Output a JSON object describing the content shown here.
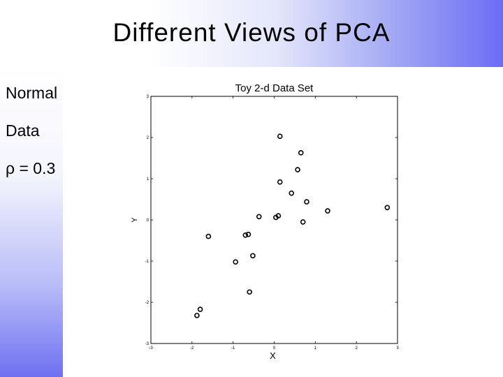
{
  "slide": {
    "title": "Different Views of PCA",
    "side_labels": [
      "Normal",
      "Data",
      "ρ = 0.3"
    ]
  },
  "chart_data": {
    "type": "scatter",
    "title": "Toy 2-d Data Set",
    "xlabel": "X",
    "ylabel": "Y",
    "xlim": [
      -3,
      3
    ],
    "ylim": [
      -3,
      3
    ],
    "xticks": [
      -3,
      -2,
      -1,
      0,
      1,
      2,
      3
    ],
    "yticks": [
      -3,
      -2,
      -1,
      0,
      1,
      2,
      3
    ],
    "grid": false,
    "marker": "open-circle",
    "point_color": "#000000",
    "points": [
      {
        "x": 0.14,
        "y": 2.03
      },
      {
        "x": 0.65,
        "y": 1.63
      },
      {
        "x": 0.57,
        "y": 1.22
      },
      {
        "x": 0.14,
        "y": 0.92
      },
      {
        "x": 0.42,
        "y": 0.65
      },
      {
        "x": 0.79,
        "y": 0.44
      },
      {
        "x": 1.3,
        "y": 0.22
      },
      {
        "x": 2.75,
        "y": 0.3
      },
      {
        "x": 0.1,
        "y": 0.1
      },
      {
        "x": 0.04,
        "y": 0.06
      },
      {
        "x": -0.37,
        "y": 0.08
      },
      {
        "x": 0.7,
        "y": -0.05
      },
      {
        "x": -0.63,
        "y": -0.35
      },
      {
        "x": -0.7,
        "y": -0.37
      },
      {
        "x": -1.6,
        "y": -0.4
      },
      {
        "x": -0.52,
        "y": -0.87
      },
      {
        "x": -0.94,
        "y": -1.02
      },
      {
        "x": -0.6,
        "y": -1.75
      },
      {
        "x": -1.8,
        "y": -2.17
      },
      {
        "x": -1.88,
        "y": -2.32
      }
    ]
  }
}
